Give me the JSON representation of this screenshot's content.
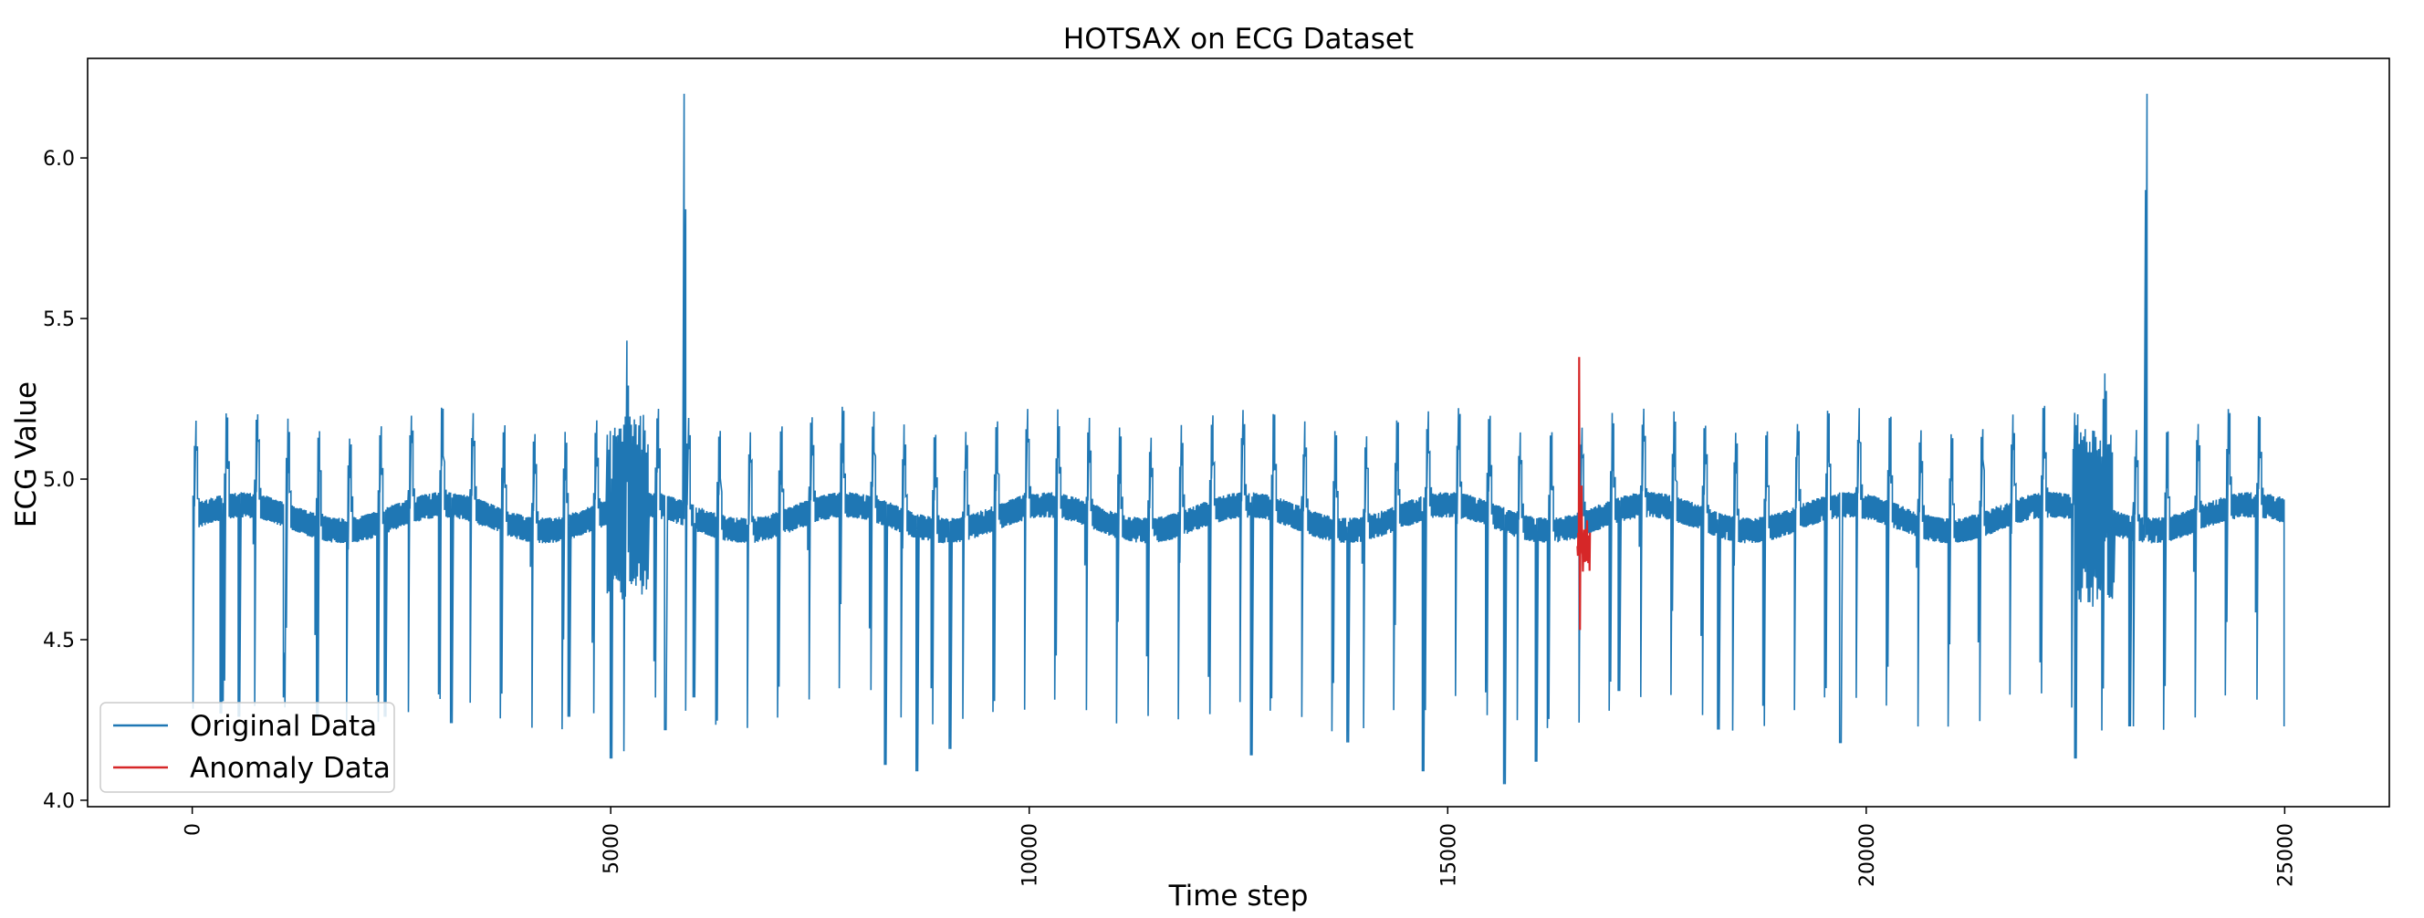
{
  "chart_data": {
    "type": "line",
    "title": "HOTSAX on ECG Dataset",
    "xlabel": "Time step",
    "ylabel": "ECG Value",
    "xlim": [
      -1250,
      26250
    ],
    "ylim": [
      3.98,
      6.31
    ],
    "x_ticks": [
      0,
      5000,
      10000,
      15000,
      20000,
      25000
    ],
    "x_tick_labels": [
      "0",
      "5000",
      "10000",
      "15000",
      "20000",
      "25000"
    ],
    "y_ticks": [
      4.0,
      4.5,
      5.0,
      5.5,
      6.0
    ],
    "y_tick_labels": [
      "4.0",
      "4.5",
      "5.0",
      "5.5",
      "6.0"
    ],
    "grid": false,
    "legend_position": "lower-left",
    "n_points": 25000,
    "series": [
      {
        "name": "Original Data",
        "color": "#1f77b4",
        "beat_period": 368,
        "baseline": 4.88,
        "beat_amplitude": 0.27,
        "r_peaks": [
          [
            5880,
            6.2
          ],
          [
            23350,
            6.2
          ]
        ],
        "noisy_segments": [
          [
            4950,
            5450
          ],
          [
            22500,
            22950
          ]
        ],
        "beat_minima": [
          [
            340,
            4.27
          ],
          [
            560,
            4.26
          ],
          [
            1100,
            4.32
          ],
          [
            1500,
            4.25
          ],
          [
            2300,
            4.26
          ],
          [
            3100,
            4.24
          ],
          [
            4500,
            4.26
          ],
          [
            5000,
            4.13
          ],
          [
            5660,
            4.22
          ],
          [
            6000,
            4.32
          ],
          [
            8280,
            4.11
          ],
          [
            8650,
            4.09
          ],
          [
            9050,
            4.16
          ],
          [
            12650,
            4.14
          ],
          [
            13800,
            4.18
          ],
          [
            14700,
            4.09
          ],
          [
            15680,
            4.05
          ],
          [
            16050,
            4.12
          ],
          [
            17040,
            4.34
          ],
          [
            18230,
            4.22
          ],
          [
            19700,
            4.18
          ],
          [
            22500,
            4.13
          ],
          [
            23150,
            4.23
          ],
          [
            25000,
            4.23
          ]
        ]
      },
      {
        "name": "Anomaly Data",
        "color": "#d62728",
        "x_range": [
          16550,
          16700
        ],
        "max": 5.38,
        "min": 4.53
      }
    ]
  }
}
